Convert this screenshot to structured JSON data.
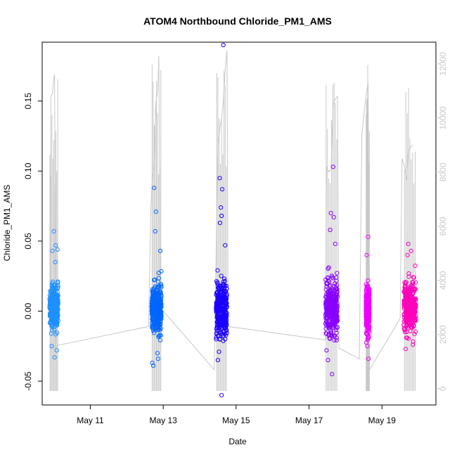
{
  "chart_data": {
    "type": "scatter",
    "title": "ATOM4 Northbound Chloride_PM1_AMS",
    "xlabel": "Date",
    "ylabel": "Chloride_PM1_AMS",
    "x_ticks": [
      "May 11",
      "May 13",
      "May 15",
      "May 17",
      "May 19"
    ],
    "y_ticks": [
      "-0.05",
      "0.00",
      "0.05",
      "0.10",
      "0.15"
    ],
    "y2_ticks": [
      "0",
      "2000",
      "4000",
      "6000",
      "8000",
      "10000",
      "12000"
    ],
    "xlim_days": [
      9.68,
      20.48
    ],
    "ylim": [
      -0.067,
      0.192
    ],
    "y2lim": [
      -600,
      12800
    ],
    "grid": false,
    "series": [
      {
        "color": "#1E90FF",
        "x_range": [
          9.88,
          10.12
        ],
        "center": 0.003,
        "spread": 0.009,
        "outliers": [
          [
            10.0,
            0.057
          ],
          [
            10.05,
            0.047
          ],
          [
            10.1,
            0.044
          ],
          [
            9.96,
            0.043
          ],
          [
            10.02,
            -0.033
          ],
          [
            10.08,
            -0.028
          ],
          [
            9.94,
            -0.025
          ],
          [
            10.04,
            0.035
          ]
        ]
      },
      {
        "color": "#0066FF",
        "x_range": [
          12.68,
          12.95
        ],
        "center": 0.001,
        "spread": 0.01,
        "outliers": [
          [
            12.75,
            0.088
          ],
          [
            12.8,
            0.071
          ],
          [
            12.7,
            -0.037
          ],
          [
            12.73,
            -0.039
          ],
          [
            12.86,
            -0.034
          ],
          [
            12.78,
            0.057
          ],
          [
            12.92,
            0.043
          ],
          [
            12.84,
            -0.03
          ]
        ]
      },
      {
        "color": "#1A00FF",
        "x_range": [
          14.45,
          14.75
        ],
        "center": 0.002,
        "spread": 0.011,
        "outliers": [
          [
            14.65,
            0.19
          ],
          [
            14.55,
            0.095
          ],
          [
            14.62,
            0.087
          ],
          [
            14.58,
            0.074
          ],
          [
            14.6,
            0.068
          ],
          [
            14.56,
            0.063
          ],
          [
            14.6,
            -0.06
          ],
          [
            14.5,
            -0.035
          ],
          [
            14.53,
            -0.029
          ],
          [
            14.7,
            0.047
          ]
        ]
      },
      {
        "color": "#8800FF",
        "x_range": [
          17.45,
          17.78
        ],
        "center": 0.002,
        "spread": 0.011,
        "outliers": [
          [
            17.66,
            0.103
          ],
          [
            17.6,
            0.07
          ],
          [
            17.68,
            0.067
          ],
          [
            17.63,
            -0.045
          ],
          [
            17.52,
            -0.035
          ],
          [
            17.48,
            -0.028
          ],
          [
            17.72,
            0.048
          ],
          [
            17.58,
            0.058
          ]
        ]
      },
      {
        "color": "#EE00FF",
        "x_range": [
          18.56,
          18.66
        ],
        "center": 0.001,
        "spread": 0.009,
        "outliers": [
          [
            18.62,
            0.053
          ],
          [
            18.58,
            0.04
          ],
          [
            18.63,
            -0.034
          ],
          [
            18.6,
            -0.025
          ]
        ]
      },
      {
        "color": "#FF00BB",
        "x_range": [
          19.6,
          19.93
        ],
        "center": 0.003,
        "spread": 0.01,
        "outliers": [
          [
            19.72,
            0.048
          ],
          [
            19.8,
            0.043
          ],
          [
            19.65,
            -0.027
          ],
          [
            19.85,
            -0.024
          ],
          [
            19.7,
            0.04
          ]
        ]
      }
    ],
    "secondary_line": {
      "color": "#c8c8c8",
      "ylabel": "",
      "points": [
        [
          9.9,
          3000
        ],
        [
          9.92,
          10800
        ],
        [
          9.96,
          10900
        ],
        [
          9.98,
          11200
        ],
        [
          10.0,
          11500
        ],
        [
          10.02,
          11600
        ],
        [
          10.05,
          1500
        ],
        [
          10.1,
          1600
        ],
        [
          12.6,
          2300
        ],
        [
          12.66,
          6600
        ],
        [
          12.7,
          7800
        ],
        [
          12.75,
          8200
        ],
        [
          12.8,
          10600
        ],
        [
          12.85,
          11000
        ],
        [
          12.88,
          12300
        ],
        [
          12.92,
          3000
        ],
        [
          14.4,
          700
        ],
        [
          14.5,
          9000
        ],
        [
          14.55,
          9600
        ],
        [
          14.6,
          10000
        ],
        [
          14.65,
          10600
        ],
        [
          14.7,
          11800
        ],
        [
          14.75,
          12500
        ],
        [
          14.78,
          2300
        ],
        [
          17.45,
          1800
        ],
        [
          17.48,
          8200
        ],
        [
          17.55,
          8000
        ],
        [
          17.6,
          8100
        ],
        [
          17.66,
          10500
        ],
        [
          17.72,
          10700
        ],
        [
          17.78,
          10800
        ],
        [
          17.82,
          1500
        ],
        [
          18.38,
          1100
        ],
        [
          18.45,
          9400
        ],
        [
          18.55,
          10700
        ],
        [
          18.62,
          11300
        ],
        [
          18.66,
          700
        ],
        [
          19.5,
          2600
        ],
        [
          19.55,
          8500
        ],
        [
          19.62,
          8200
        ],
        [
          19.68,
          7700
        ],
        [
          19.72,
          8800
        ],
        [
          19.78,
          8900
        ],
        [
          19.84,
          9000
        ]
      ]
    }
  }
}
